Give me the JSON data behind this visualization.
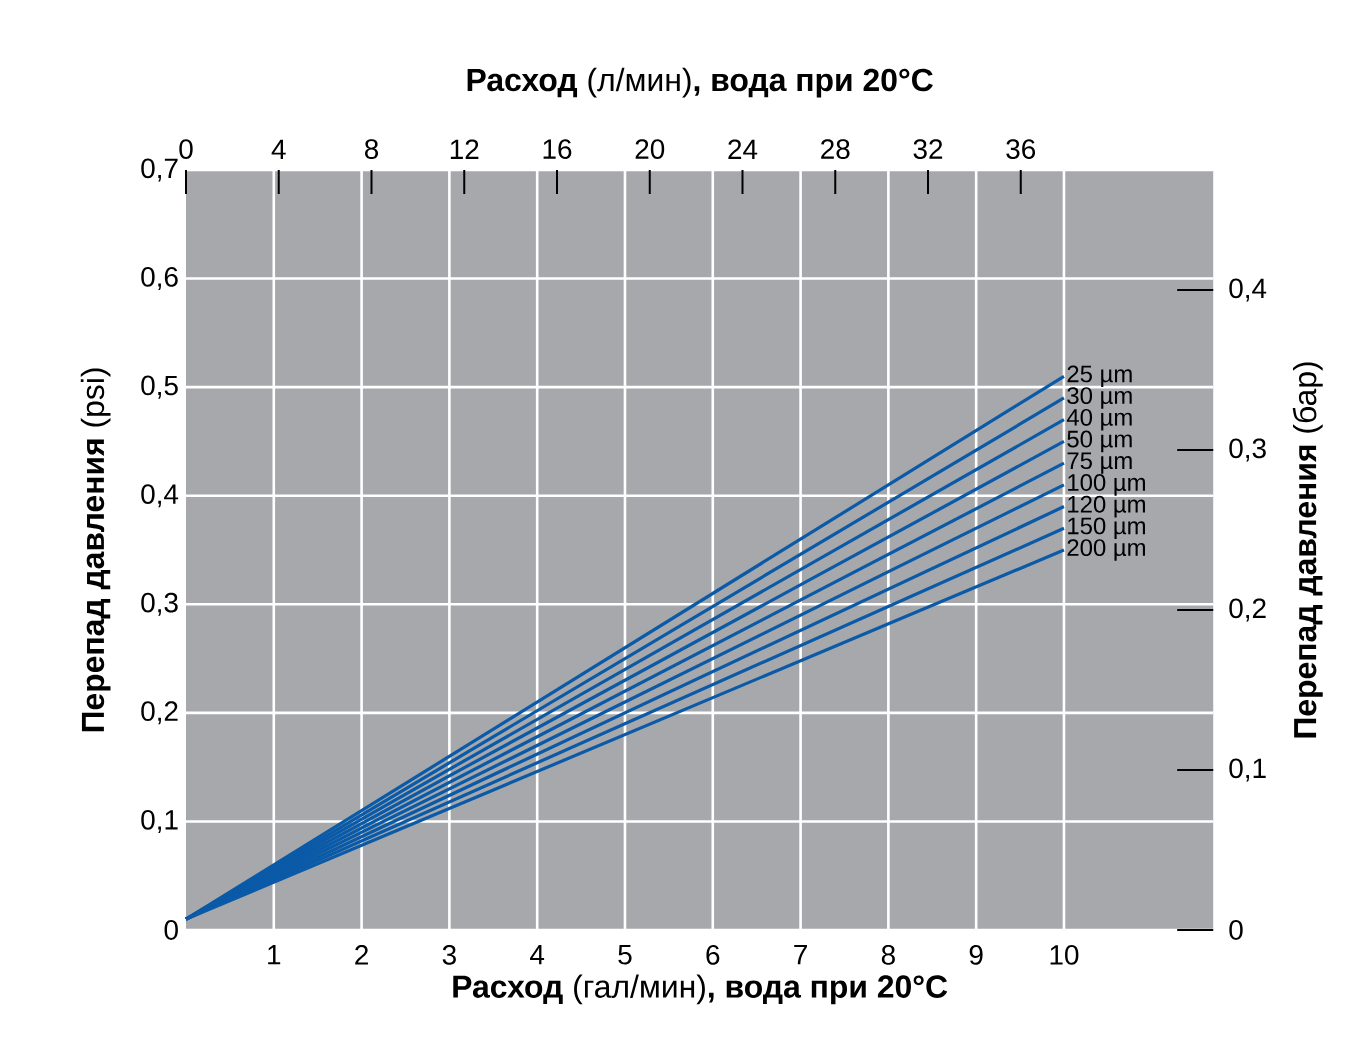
{
  "chart_data": {
    "type": "line",
    "xlabel": "**Расход** (гал/мин)**, вода при 20°C**",
    "ylabel": "**Перепад давления** (psi)",
    "x2label": "**Расход** (л/мин)**, вода при 20°C**",
    "y2label": "**Перепад давления** (бар)",
    "xlim": [
      0,
      11.7
    ],
    "xticks": [
      1,
      2,
      3,
      4,
      5,
      6,
      7,
      8,
      9,
      10
    ],
    "ylim": [
      0,
      0.7
    ],
    "yticks": [
      {
        "value": 0,
        "label": "0"
      },
      {
        "value": 0.1,
        "label": "0,1"
      },
      {
        "value": 0.2,
        "label": "0,2"
      },
      {
        "value": 0.3,
        "label": "0,3"
      },
      {
        "value": 0.4,
        "label": "0,4"
      },
      {
        "value": 0.5,
        "label": "0,5"
      },
      {
        "value": 0.6,
        "label": "0,6"
      },
      {
        "value": 0.7,
        "label": "0,7"
      }
    ],
    "x2lim": [
      0,
      44.3
    ],
    "x2ticks": [
      0,
      4,
      8,
      12,
      16,
      20,
      24,
      28,
      32,
      36
    ],
    "y2lim": [
      0,
      0.475
    ],
    "y2ticks": [
      {
        "value": 0,
        "label": "0"
      },
      {
        "value": 0.1,
        "label": "0,1"
      },
      {
        "value": 0.2,
        "label": "0,2"
      },
      {
        "value": 0.3,
        "label": "0,3"
      },
      {
        "value": 0.4,
        "label": "0,4"
      }
    ],
    "grid": true,
    "x": [
      0,
      10
    ],
    "series": [
      {
        "name": "25 µm",
        "color": "#0a5aa8",
        "values": [
          0.01,
          0.51
        ]
      },
      {
        "name": "30 µm",
        "color": "#0a5aa8",
        "values": [
          0.01,
          0.49
        ]
      },
      {
        "name": "40 µm",
        "color": "#0a5aa8",
        "values": [
          0.01,
          0.47
        ]
      },
      {
        "name": "50 µm",
        "color": "#0a5aa8",
        "values": [
          0.01,
          0.45
        ]
      },
      {
        "name": "75 µm",
        "color": "#0a5aa8",
        "values": [
          0.01,
          0.43
        ]
      },
      {
        "name": "100 µm",
        "color": "#0a5aa8",
        "values": [
          0.01,
          0.41
        ]
      },
      {
        "name": "120 µm",
        "color": "#0a5aa8",
        "values": [
          0.01,
          0.39
        ]
      },
      {
        "name": "150 µm",
        "color": "#0a5aa8",
        "values": [
          0.01,
          0.37
        ]
      },
      {
        "name": "200 µm",
        "color": "#0a5aa8",
        "values": [
          0.01,
          0.35
        ]
      }
    ]
  }
}
